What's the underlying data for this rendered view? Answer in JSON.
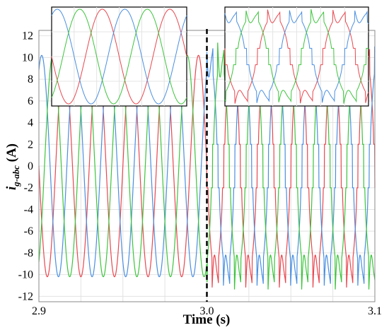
{
  "chart_data": {
    "type": "line",
    "xlabel": "Time (s)",
    "ylabel_main": "i",
    "ylabel_sub": "g-abc",
    "ylabel_unit": " (A)",
    "xlim": [
      2.9,
      3.1
    ],
    "ylim": [
      -12.5,
      12.5
    ],
    "x_ticks": [
      "2.9",
      "3.0",
      "3.1"
    ],
    "x_tick_values": [
      2.9,
      3.0,
      3.1
    ],
    "y_ticks": [
      -12,
      -10,
      -8,
      -6,
      -4,
      -2,
      0,
      2,
      4,
      6,
      8,
      10,
      12
    ],
    "grid": true,
    "event_time": 3.0,
    "frequency_hz": 50,
    "series": [
      {
        "phase_deg": 90,
        "color": "#e8474f"
      },
      {
        "phase_deg": -30,
        "color": "#4a8fe0"
      },
      {
        "phase_deg": 210,
        "color": "#3cc43c"
      }
    ],
    "before_event": {
      "waveform": "sinusoidal",
      "amplitude": 10.2
    },
    "after_event": {
      "waveform": "distorted",
      "peak": 11.5,
      "flat_top": 8.5,
      "ripple": 1.2,
      "mid_plateau": 2
    }
  },
  "insets": [
    {
      "region": "before",
      "waveform": "sinusoidal"
    },
    {
      "region": "after",
      "waveform": "distorted"
    }
  ]
}
